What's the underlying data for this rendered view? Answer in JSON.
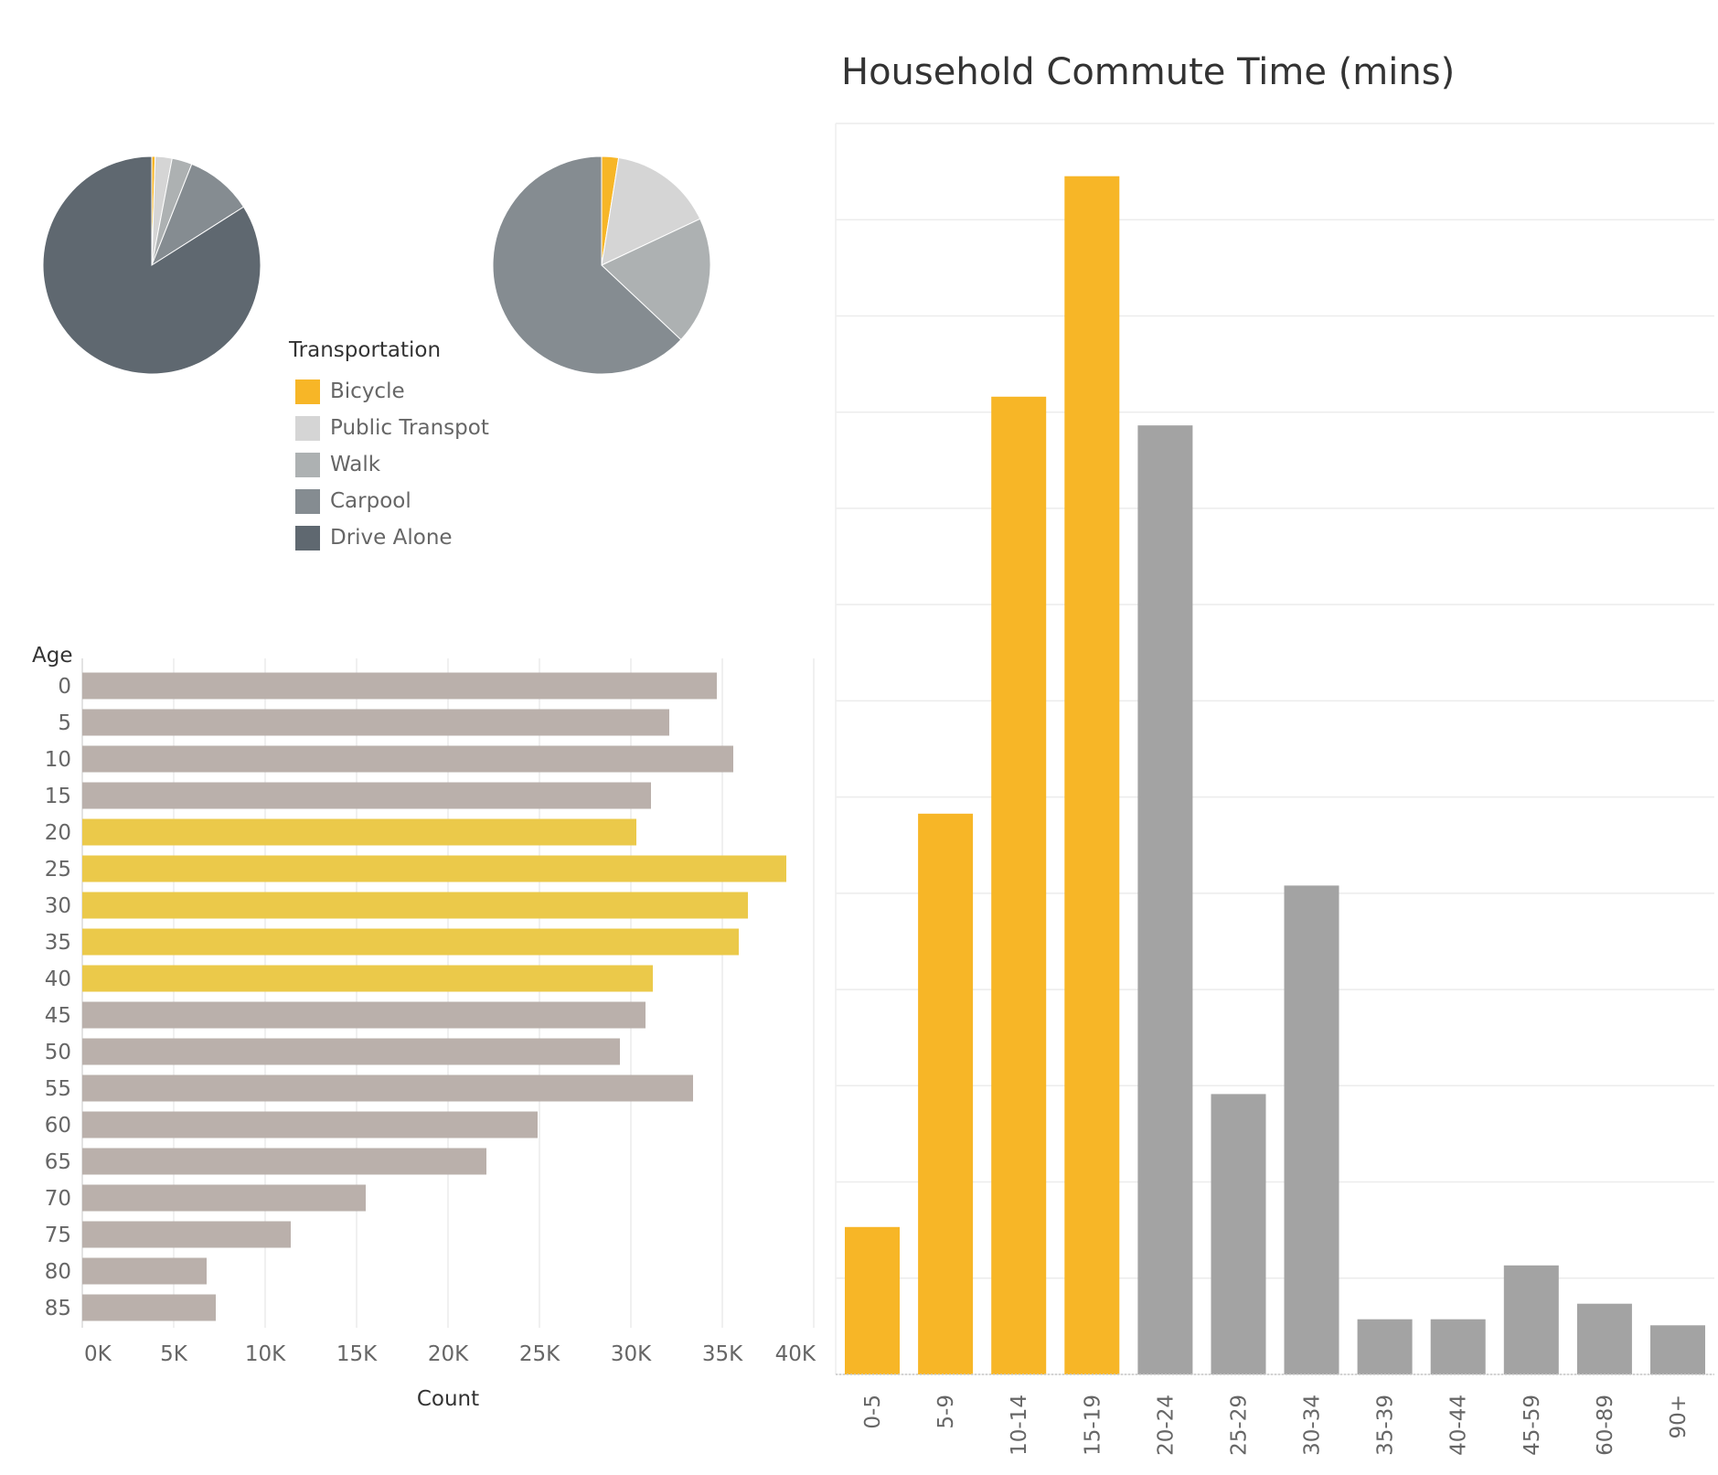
{
  "colors": {
    "highlight": "#F7B627",
    "age_highlight": "#EBC94A",
    "age_base": "#BAB0AB",
    "commute_base": "#A3A3A3",
    "bicycle": "#F7B627",
    "public_transport": "#D5D5D5",
    "walk": "#ADB1B2",
    "carpool": "#858C91",
    "drive_alone": "#5F6870"
  },
  "legend": {
    "title": "Transportation",
    "items": [
      {
        "label": "Bicycle",
        "color": "#F7B627"
      },
      {
        "label": "Public Transpot",
        "color": "#D5D5D5"
      },
      {
        "label": "Walk",
        "color": "#ADB1B2"
      },
      {
        "label": "Carpool",
        "color": "#858C91"
      },
      {
        "label": "Drive Alone",
        "color": "#5F6870"
      }
    ]
  },
  "chart_data": [
    {
      "type": "pie",
      "legend_title": "Transportation",
      "categories": [
        "Bicycle",
        "Public Transpot",
        "Walk",
        "Carpool",
        "Drive Alone"
      ],
      "values": [
        0.5,
        2.5,
        3.0,
        10.0,
        84.0
      ]
    },
    {
      "type": "pie",
      "legend_title": "Transportation",
      "categories": [
        "Bicycle",
        "Public Transpot",
        "Walk",
        "Carpool",
        "Drive Alone"
      ],
      "values": [
        2.5,
        15.5,
        19.0,
        63.0,
        0
      ]
    },
    {
      "type": "bar",
      "orientation": "horizontal",
      "ylabel": "Age",
      "xlabel": "Count",
      "categories": [
        "0",
        "5",
        "10",
        "15",
        "20",
        "25",
        "30",
        "35",
        "40",
        "45",
        "50",
        "55",
        "60",
        "65",
        "70",
        "75",
        "80",
        "85"
      ],
      "values": [
        34700,
        32100,
        35600,
        31100,
        30300,
        38500,
        36400,
        35900,
        31200,
        30800,
        29400,
        33400,
        24900,
        22100,
        15500,
        11400,
        6800,
        7300
      ],
      "highlighted": [
        "20",
        "25",
        "30",
        "35",
        "40"
      ],
      "xlim": [
        0,
        40000
      ],
      "xticks": [
        "0K",
        "5K",
        "10K",
        "15K",
        "20K",
        "25K",
        "30K",
        "35K",
        "40K"
      ],
      "grid": true
    },
    {
      "type": "bar",
      "title": "Household Commute Time (mins)",
      "categories": [
        "0-5",
        "5-9",
        "10-14",
        "15-19",
        "20-24",
        "25-29",
        "30-34",
        "35-39",
        "40-44",
        "45-59",
        "60-89",
        "90+"
      ],
      "values": [
        12.3,
        46.8,
        81.6,
        100,
        79.2,
        23.4,
        40.8,
        4.6,
        4.6,
        9.1,
        5.9,
        4.1
      ],
      "highlighted": [
        "0-5",
        "5-9",
        "10-14",
        "15-19"
      ],
      "ylim": [
        0,
        104.4
      ],
      "grid": true
    }
  ]
}
